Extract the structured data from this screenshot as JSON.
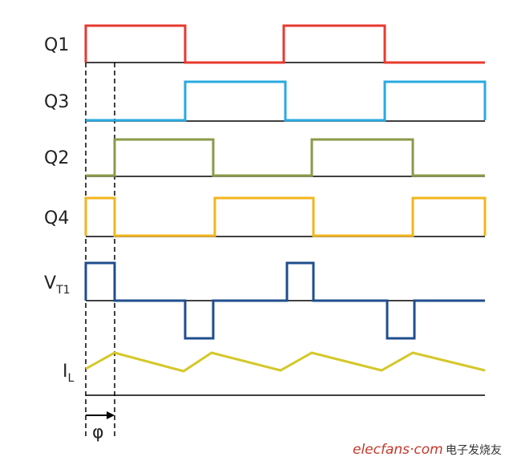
{
  "signals": {
    "q1": "Q1",
    "q3": "Q3",
    "q2": "Q2",
    "q4": "Q4",
    "vt1": {
      "main": "V",
      "sub": "T1"
    },
    "il": {
      "main": "I",
      "sub": "L"
    }
  },
  "phase": "φ",
  "watermark": {
    "site": "elecfans·com",
    "cn": "电子发烧友"
  }
}
